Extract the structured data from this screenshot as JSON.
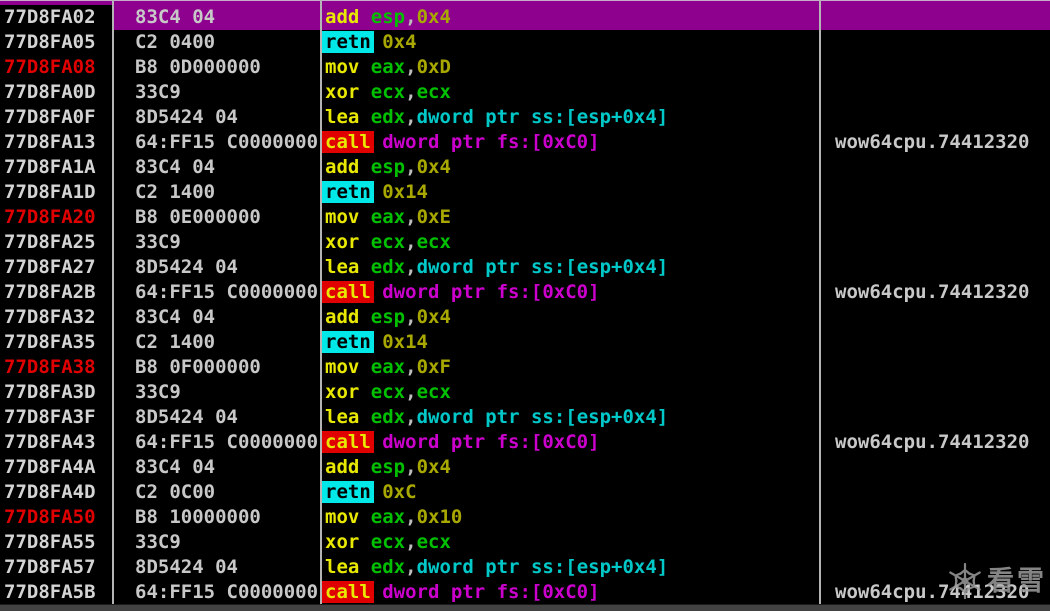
{
  "colors": {
    "background": "#000000",
    "selection": "#8E008E",
    "address": "#D4D4D4",
    "address_breakpoint": "#E00000",
    "bytes": "#C8C8C8",
    "comment": "#C8C8C8",
    "plain": "#BEBEBE",
    "mnemonic": "#E8E800",
    "register": "#00C000",
    "number": "#A8A800",
    "stack_operand": "#00C8C8",
    "fs_operand": "#CC00CC",
    "retn_bg": "#00E8E8",
    "call_bg": "#E00000",
    "separator": "#B4B4B4"
  },
  "watermark": {
    "icon": "snowflake-icon",
    "text": "看雪"
  },
  "disassembly": {
    "rows": [
      {
        "address": "77D8FA02",
        "red": false,
        "selected": true,
        "bytes": "83C4 04",
        "tokens": [
          [
            "mnemonic",
            "add"
          ],
          [
            "plain",
            " "
          ],
          [
            "register",
            "esp"
          ],
          [
            "plain",
            ","
          ],
          [
            "number",
            "0x4"
          ]
        ],
        "comment": ""
      },
      {
        "address": "77D8FA05",
        "red": false,
        "selected": false,
        "bytes": "C2 0400",
        "tokens": [
          [
            "retn",
            "retn"
          ],
          [
            "plain",
            " "
          ],
          [
            "number",
            "0x4"
          ]
        ],
        "comment": ""
      },
      {
        "address": "77D8FA08",
        "red": true,
        "selected": false,
        "bytes": "B8 0D000000",
        "tokens": [
          [
            "mnemonic",
            "mov"
          ],
          [
            "plain",
            " "
          ],
          [
            "register",
            "eax"
          ],
          [
            "plain",
            ","
          ],
          [
            "number",
            "0xD"
          ]
        ],
        "comment": ""
      },
      {
        "address": "77D8FA0D",
        "red": false,
        "selected": false,
        "bytes": "33C9",
        "tokens": [
          [
            "mnemonic",
            "xor"
          ],
          [
            "plain",
            " "
          ],
          [
            "register",
            "ecx"
          ],
          [
            "plain",
            ","
          ],
          [
            "register",
            "ecx"
          ]
        ],
        "comment": ""
      },
      {
        "address": "77D8FA0F",
        "red": false,
        "selected": false,
        "bytes": "8D5424 04",
        "tokens": [
          [
            "mnemonic",
            "lea"
          ],
          [
            "plain",
            " "
          ],
          [
            "register",
            "edx"
          ],
          [
            "plain",
            ","
          ],
          [
            "stack",
            "dword ptr ss:[esp+0x4]"
          ]
        ],
        "comment": ""
      },
      {
        "address": "77D8FA13",
        "red": false,
        "selected": false,
        "bytes": "64:FF15 C0000000",
        "tokens": [
          [
            "call",
            "call"
          ],
          [
            "plain",
            " "
          ],
          [
            "mem",
            "dword ptr fs:[0xC0]"
          ]
        ],
        "comment": "wow64cpu.74412320"
      },
      {
        "address": "77D8FA1A",
        "red": false,
        "selected": false,
        "bytes": "83C4 04",
        "tokens": [
          [
            "mnemonic",
            "add"
          ],
          [
            "plain",
            " "
          ],
          [
            "register",
            "esp"
          ],
          [
            "plain",
            ","
          ],
          [
            "number",
            "0x4"
          ]
        ],
        "comment": ""
      },
      {
        "address": "77D8FA1D",
        "red": false,
        "selected": false,
        "bytes": "C2 1400",
        "tokens": [
          [
            "retn",
            "retn"
          ],
          [
            "plain",
            " "
          ],
          [
            "number",
            "0x14"
          ]
        ],
        "comment": ""
      },
      {
        "address": "77D8FA20",
        "red": true,
        "selected": false,
        "bytes": "B8 0E000000",
        "tokens": [
          [
            "mnemonic",
            "mov"
          ],
          [
            "plain",
            " "
          ],
          [
            "register",
            "eax"
          ],
          [
            "plain",
            ","
          ],
          [
            "number",
            "0xE"
          ]
        ],
        "comment": ""
      },
      {
        "address": "77D8FA25",
        "red": false,
        "selected": false,
        "bytes": "33C9",
        "tokens": [
          [
            "mnemonic",
            "xor"
          ],
          [
            "plain",
            " "
          ],
          [
            "register",
            "ecx"
          ],
          [
            "plain",
            ","
          ],
          [
            "register",
            "ecx"
          ]
        ],
        "comment": ""
      },
      {
        "address": "77D8FA27",
        "red": false,
        "selected": false,
        "bytes": "8D5424 04",
        "tokens": [
          [
            "mnemonic",
            "lea"
          ],
          [
            "plain",
            " "
          ],
          [
            "register",
            "edx"
          ],
          [
            "plain",
            ","
          ],
          [
            "stack",
            "dword ptr ss:[esp+0x4]"
          ]
        ],
        "comment": ""
      },
      {
        "address": "77D8FA2B",
        "red": false,
        "selected": false,
        "bytes": "64:FF15 C0000000",
        "tokens": [
          [
            "call",
            "call"
          ],
          [
            "plain",
            " "
          ],
          [
            "mem",
            "dword ptr fs:[0xC0]"
          ]
        ],
        "comment": "wow64cpu.74412320"
      },
      {
        "address": "77D8FA32",
        "red": false,
        "selected": false,
        "bytes": "83C4 04",
        "tokens": [
          [
            "mnemonic",
            "add"
          ],
          [
            "plain",
            " "
          ],
          [
            "register",
            "esp"
          ],
          [
            "plain",
            ","
          ],
          [
            "number",
            "0x4"
          ]
        ],
        "comment": ""
      },
      {
        "address": "77D8FA35",
        "red": false,
        "selected": false,
        "bytes": "C2 1400",
        "tokens": [
          [
            "retn",
            "retn"
          ],
          [
            "plain",
            " "
          ],
          [
            "number",
            "0x14"
          ]
        ],
        "comment": ""
      },
      {
        "address": "77D8FA38",
        "red": true,
        "selected": false,
        "bytes": "B8 0F000000",
        "tokens": [
          [
            "mnemonic",
            "mov"
          ],
          [
            "plain",
            " "
          ],
          [
            "register",
            "eax"
          ],
          [
            "plain",
            ","
          ],
          [
            "number",
            "0xF"
          ]
        ],
        "comment": ""
      },
      {
        "address": "77D8FA3D",
        "red": false,
        "selected": false,
        "bytes": "33C9",
        "tokens": [
          [
            "mnemonic",
            "xor"
          ],
          [
            "plain",
            " "
          ],
          [
            "register",
            "ecx"
          ],
          [
            "plain",
            ","
          ],
          [
            "register",
            "ecx"
          ]
        ],
        "comment": ""
      },
      {
        "address": "77D8FA3F",
        "red": false,
        "selected": false,
        "bytes": "8D5424 04",
        "tokens": [
          [
            "mnemonic",
            "lea"
          ],
          [
            "plain",
            " "
          ],
          [
            "register",
            "edx"
          ],
          [
            "plain",
            ","
          ],
          [
            "stack",
            "dword ptr ss:[esp+0x4]"
          ]
        ],
        "comment": ""
      },
      {
        "address": "77D8FA43",
        "red": false,
        "selected": false,
        "bytes": "64:FF15 C0000000",
        "tokens": [
          [
            "call",
            "call"
          ],
          [
            "plain",
            " "
          ],
          [
            "mem",
            "dword ptr fs:[0xC0]"
          ]
        ],
        "comment": "wow64cpu.74412320"
      },
      {
        "address": "77D8FA4A",
        "red": false,
        "selected": false,
        "bytes": "83C4 04",
        "tokens": [
          [
            "mnemonic",
            "add"
          ],
          [
            "plain",
            " "
          ],
          [
            "register",
            "esp"
          ],
          [
            "plain",
            ","
          ],
          [
            "number",
            "0x4"
          ]
        ],
        "comment": ""
      },
      {
        "address": "77D8FA4D",
        "red": false,
        "selected": false,
        "bytes": "C2 0C00",
        "tokens": [
          [
            "retn",
            "retn"
          ],
          [
            "plain",
            " "
          ],
          [
            "number",
            "0xC"
          ]
        ],
        "comment": ""
      },
      {
        "address": "77D8FA50",
        "red": true,
        "selected": false,
        "bytes": "B8 10000000",
        "tokens": [
          [
            "mnemonic",
            "mov"
          ],
          [
            "plain",
            " "
          ],
          [
            "register",
            "eax"
          ],
          [
            "plain",
            ","
          ],
          [
            "number",
            "0x10"
          ]
        ],
        "comment": ""
      },
      {
        "address": "77D8FA55",
        "red": false,
        "selected": false,
        "bytes": "33C9",
        "tokens": [
          [
            "mnemonic",
            "xor"
          ],
          [
            "plain",
            " "
          ],
          [
            "register",
            "ecx"
          ],
          [
            "plain",
            ","
          ],
          [
            "register",
            "ecx"
          ]
        ],
        "comment": ""
      },
      {
        "address": "77D8FA57",
        "red": false,
        "selected": false,
        "bytes": "8D5424 04",
        "tokens": [
          [
            "mnemonic",
            "lea"
          ],
          [
            "plain",
            " "
          ],
          [
            "register",
            "edx"
          ],
          [
            "plain",
            ","
          ],
          [
            "stack",
            "dword ptr ss:[esp+0x4]"
          ]
        ],
        "comment": ""
      },
      {
        "address": "77D8FA5B",
        "red": false,
        "selected": false,
        "bytes": "64:FF15 C0000000",
        "tokens": [
          [
            "call",
            "call"
          ],
          [
            "plain",
            " "
          ],
          [
            "mem",
            "dword ptr fs:[0xC0]"
          ]
        ],
        "comment": "wow64cpu.74412320"
      }
    ]
  }
}
